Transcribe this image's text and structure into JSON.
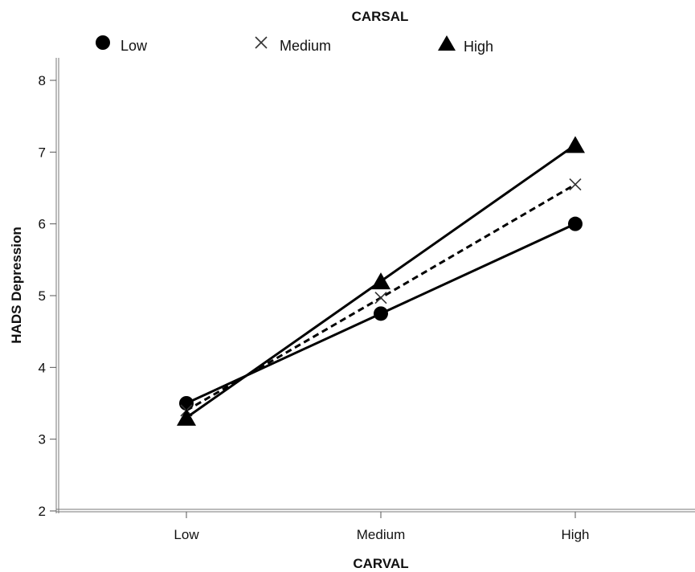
{
  "chart_data": {
    "type": "line",
    "title": "CARSAL",
    "xlabel": "CARVAL",
    "ylabel": "HADS Depression",
    "categories": [
      "Low",
      "Medium",
      "High"
    ],
    "ylim": [
      2,
      8
    ],
    "yticks": [
      2,
      3,
      4,
      5,
      6,
      7,
      8
    ],
    "grid": false,
    "legend_position": "top",
    "series": [
      {
        "name": "Low",
        "marker": "circle",
        "line": "solid",
        "color": "#000000",
        "values": [
          3.5,
          4.75,
          6.0
        ]
      },
      {
        "name": "Medium",
        "marker": "x",
        "line": "dashed",
        "color": "#000000",
        "values": [
          3.4,
          4.97,
          6.55
        ]
      },
      {
        "name": "High",
        "marker": "triangle",
        "line": "solid",
        "color": "#000000",
        "values": [
          3.3,
          5.2,
          7.1
        ]
      }
    ]
  }
}
